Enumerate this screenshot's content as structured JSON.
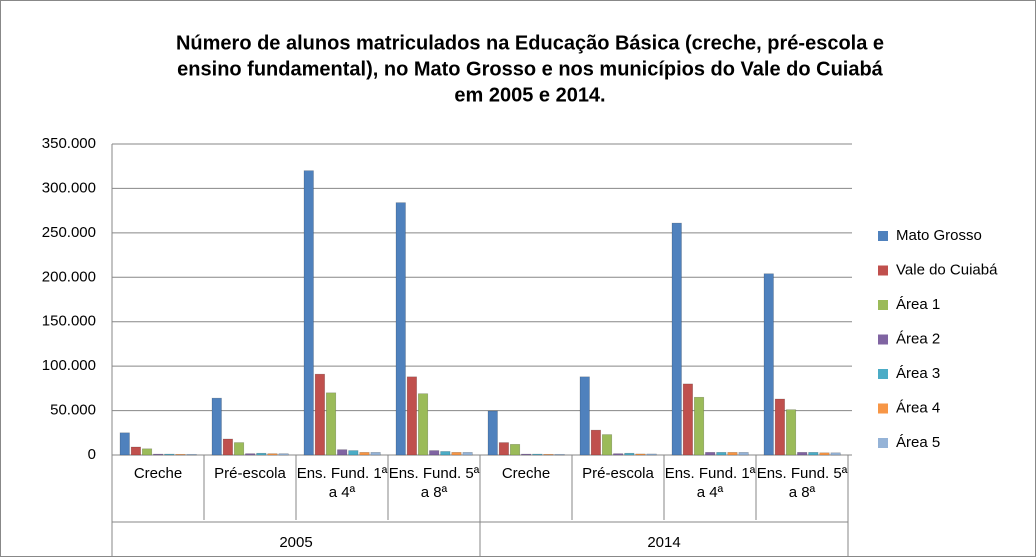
{
  "chart_data": {
    "type": "bar",
    "title": [
      "Número de alunos matriculados na Educação Básica (creche, pré-escola e",
      "ensino fundamental), no Mato Grosso e nos municípios do Vale do Cuiabá",
      "em 2005 e 2014."
    ],
    "categories": [
      "Creche",
      "Pré-escola",
      "Ens. Fund. 1ª a 4ª",
      "Ens. Fund. 5ª a 8ª",
      "Creche",
      "Pré-escola",
      "Ens. Fund. 1ª a 4ª",
      "Ens. Fund. 5ª a 8ª"
    ],
    "groups": [
      "2005",
      "2014"
    ],
    "series": [
      {
        "name": "Mato Grosso",
        "color": "#4F81BD",
        "values": [
          25000,
          64000,
          320000,
          284000,
          49500,
          88000,
          261000,
          204000
        ]
      },
      {
        "name": "Vale do Cuiabá",
        "color": "#C0504D",
        "values": [
          9000,
          18000,
          91000,
          88000,
          14000,
          28000,
          80000,
          63000
        ]
      },
      {
        "name": "Área 1",
        "color": "#9BBB59",
        "values": [
          7000,
          14000,
          70000,
          69000,
          12000,
          23000,
          65000,
          51000
        ]
      },
      {
        "name": "Área 2",
        "color": "#8064A2",
        "values": [
          1000,
          1500,
          6000,
          5000,
          1000,
          1500,
          3000,
          3000
        ]
      },
      {
        "name": "Área 3",
        "color": "#4BACC6",
        "values": [
          1000,
          2000,
          5000,
          4000,
          1000,
          2000,
          3000,
          3000
        ]
      },
      {
        "name": "Área 4",
        "color": "#F79646",
        "values": [
          800,
          1500,
          3000,
          3000,
          800,
          1200,
          3000,
          2500
        ]
      },
      {
        "name": "Área 5",
        "color": "#95B3D7",
        "values": [
          800,
          1500,
          3000,
          3000,
          800,
          1200,
          3000,
          2500
        ]
      }
    ],
    "ylim": [
      0,
      350000
    ],
    "yticks": [
      0,
      {
        "value": 50000,
        "label": "50.000"
      },
      {
        "value": 100000,
        "label": "100.000"
      },
      {
        "value": 150000,
        "label": "150.000"
      },
      {
        "value": 200000,
        "label": "200.000"
      },
      {
        "value": 250000,
        "label": "250.000"
      },
      {
        "value": 300000,
        "label": "300.000"
      },
      {
        "value": 350000,
        "label": "350.000"
      }
    ],
    "grid": true,
    "legend": "right"
  }
}
